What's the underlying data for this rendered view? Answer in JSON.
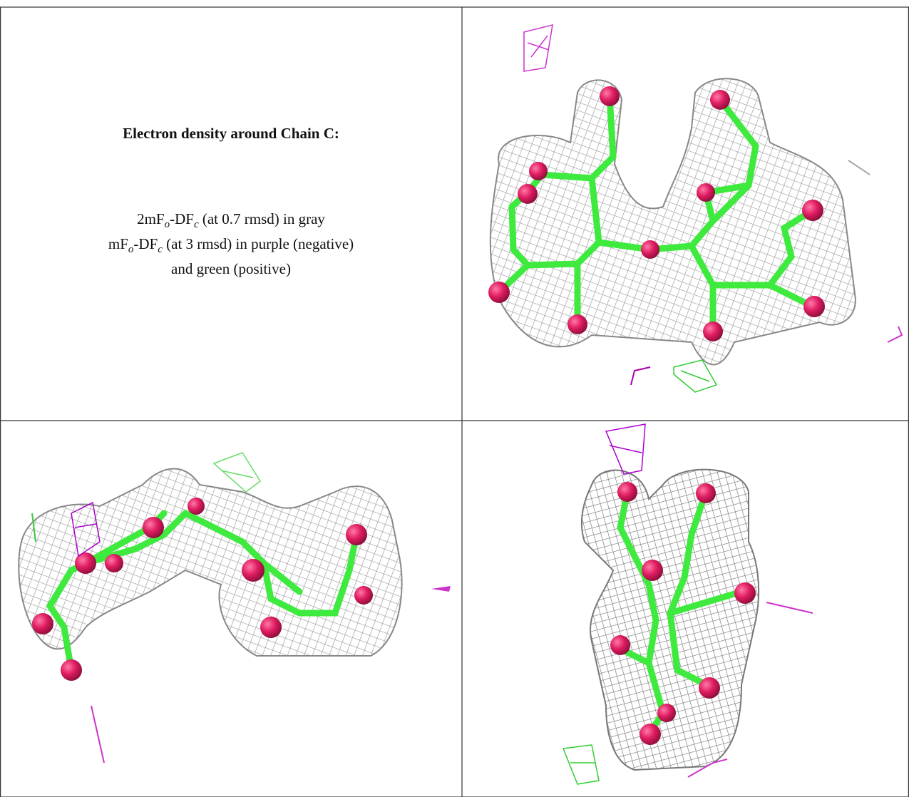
{
  "caption": {
    "title": "Electron density around Chain C:",
    "lines": [
      [
        "2mF",
        "o",
        "-DF",
        "c",
        " (at 0.7 rmsd) in gray"
      ],
      [
        "mF",
        "o",
        "-DF",
        "c",
        " (at 3 rmsd) in purple (negative)"
      ],
      [
        "and green (positive)"
      ]
    ]
  }
}
